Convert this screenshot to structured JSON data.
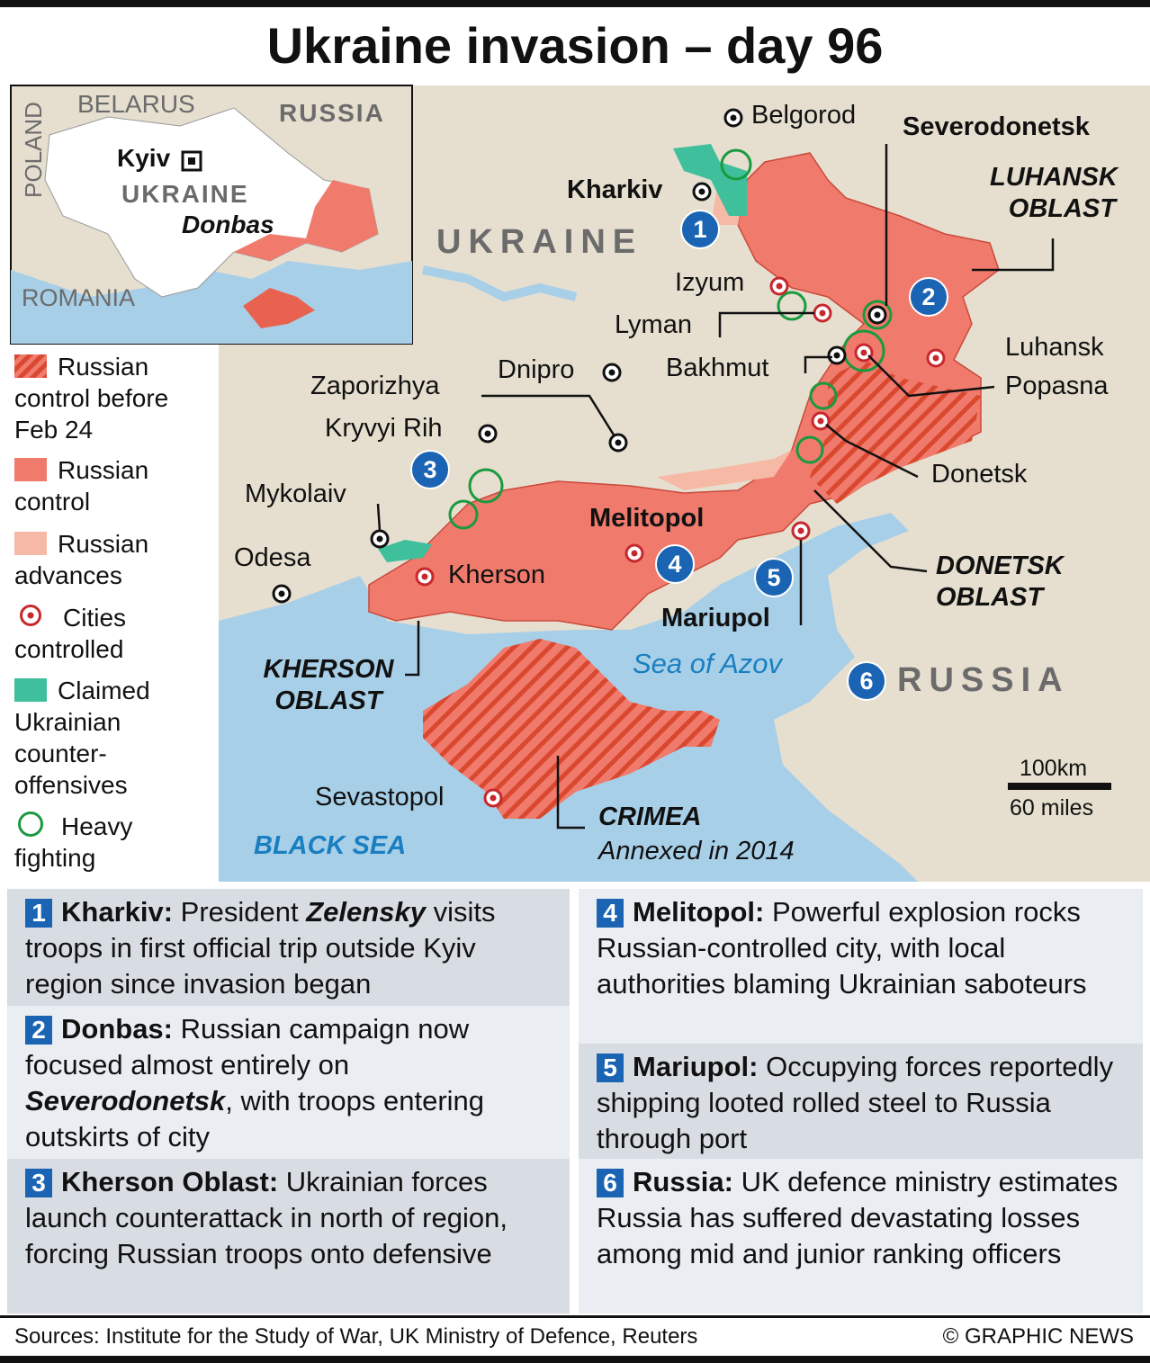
{
  "title": "Ukraine invasion – day 96",
  "inset": {
    "labels": [
      "BELARUS",
      "RUSSIA",
      "POLAND",
      "Kyiv",
      "UKRAINE",
      "Donbas",
      "ROMANIA"
    ]
  },
  "legend": [
    "Russian control before Feb 24",
    "Russian control",
    "Russian advances",
    "Cities controlled",
    "Claimed Ukrainian counter-offensives",
    "Heavy fighting"
  ],
  "map": {
    "country": "UKRAINE",
    "neighbour": "RUSSIA",
    "cities": [
      "Belgorod",
      "Kharkiv",
      "Severodonetsk",
      "Izyum",
      "Lyman",
      "Bakhmut",
      "Luhansk",
      "Popasna",
      "Dnipro",
      "Zaporizhya",
      "Kryvyi Rih",
      "Mykolaiv",
      "Odesa",
      "Kherson",
      "Melitopol",
      "Mariupol",
      "Donetsk",
      "Sevastopol"
    ],
    "regions": [
      "LUHANSK OBLAST",
      "DONETSK OBLAST",
      "KHERSON OBLAST",
      "CRIMEA"
    ],
    "crimea_note": "Annexed in 2014",
    "seas": [
      "BLACK SEA",
      "Sea of Azov"
    ],
    "markers": [
      "1",
      "2",
      "3",
      "4",
      "5",
      "6"
    ],
    "scale": [
      "100km",
      "60 miles"
    ]
  },
  "panels": [
    {
      "number": "1",
      "heading": "Kharkiv:",
      "body": [
        " President ",
        "Zelensky",
        " visits troops in first official trip outside Kyiv region since invasion began"
      ]
    },
    {
      "number": "2",
      "heading": "Donbas:",
      "body": [
        " Russian campaign now focused almost entirely on ",
        "Severodonetsk",
        ", with troops entering outskirts of city"
      ]
    },
    {
      "number": "3",
      "heading": "Kherson Oblast:",
      "body": [
        " Ukrainian forces launch counterattack in north of region, forcing Russian troops onto defensive"
      ]
    },
    {
      "number": "4",
      "heading": "Melitopol:",
      "body": [
        " Powerful explosion rocks Russian-controlled city, with local authorities blaming Ukrainian saboteurs"
      ]
    },
    {
      "number": "5",
      "heading": "Mariupol:",
      "body": [
        " Occupying forces reportedly shipping looted rolled steel to Russia through port"
      ]
    },
    {
      "number": "6",
      "heading": "Russia:",
      "body": [
        " UK defence ministry estimates Russia has suffered devastating losses among mid and junior ranking officers"
      ]
    }
  ],
  "footer": {
    "sources": "Sources: Institute for the Study of War, UK Ministry of Defence, Reuters",
    "credit": "© GRAPHIC NEWS"
  }
}
